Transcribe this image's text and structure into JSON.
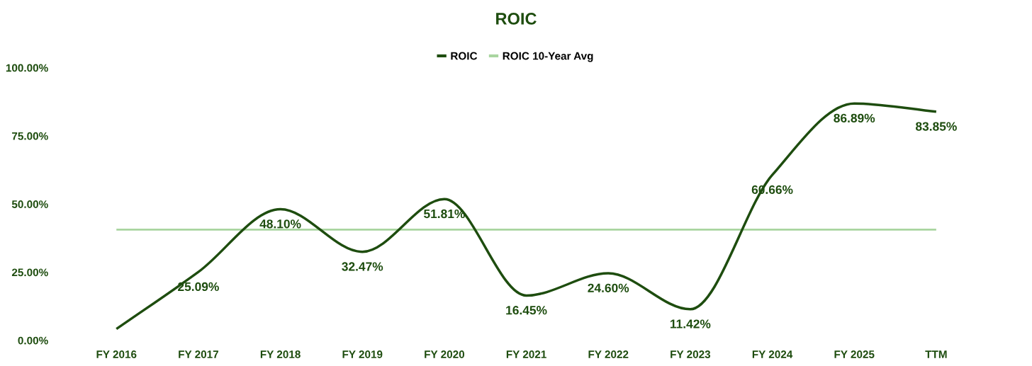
{
  "chart_data": {
    "type": "line",
    "title": "ROIC",
    "categories": [
      "FY 2016",
      "FY 2017",
      "FY 2018",
      "FY 2019",
      "FY 2020",
      "FY 2021",
      "FY 2022",
      "FY 2023",
      "FY 2024",
      "FY 2025",
      "TTM"
    ],
    "series": [
      {
        "name": "ROIC",
        "color": "#1e4d0f",
        "values": [
          4.2,
          25.09,
          48.1,
          32.47,
          51.81,
          16.45,
          24.6,
          11.42,
          60.66,
          86.89,
          83.85
        ],
        "value_labels": [
          null,
          "25.09%",
          "48.10%",
          "32.47%",
          "51.81%",
          "16.45%",
          "24.60%",
          "11.42%",
          "60.66%",
          "86.89%",
          "83.85%"
        ]
      },
      {
        "name": "ROIC 10-Year Avg",
        "color": "#a9d5a0",
        "values": [
          40.6,
          40.6,
          40.6,
          40.6,
          40.6,
          40.6,
          40.6,
          40.6,
          40.6,
          40.6,
          40.6
        ]
      }
    ],
    "ylim": [
      0,
      100
    ],
    "yticks": [
      {
        "value": 0,
        "label": "0.00%"
      },
      {
        "value": 25,
        "label": "25.00%"
      },
      {
        "value": 50,
        "label": "50.00%"
      },
      {
        "value": 75,
        "label": "75.00%"
      },
      {
        "value": 100,
        "label": "100.00%"
      }
    ],
    "grid": false,
    "legend": "top",
    "marker": "none",
    "line_style": "solid"
  }
}
